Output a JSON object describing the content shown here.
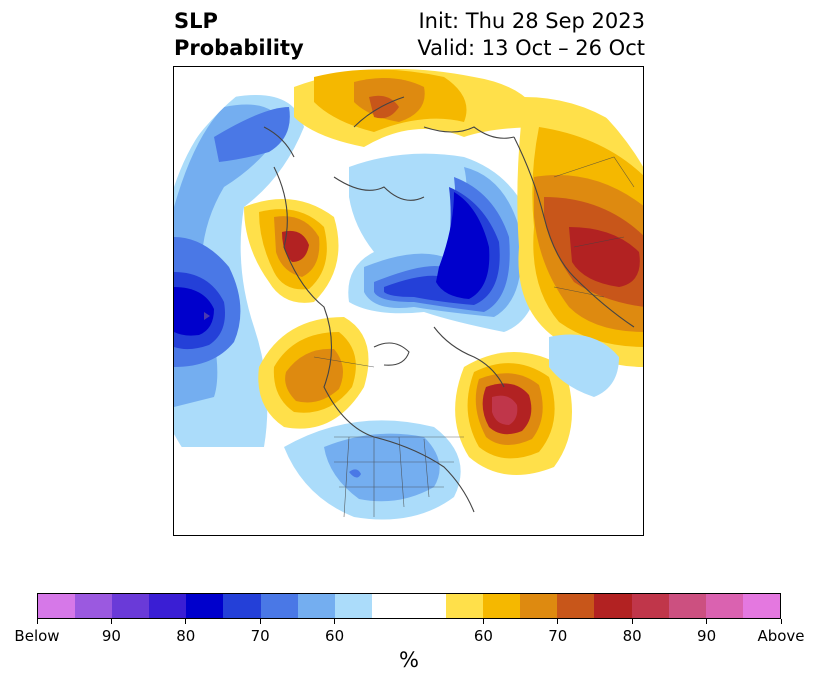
{
  "title": {
    "left_line1": "SLP",
    "left_line2": "Probability",
    "right_line1": "Init: Thu 28 Sep 2023",
    "right_line2": "Valid: 13 Oct – 26 Oct"
  },
  "colorbar": {
    "colors": [
      "#d678e8",
      "#9b59e0",
      "#6a3ad8",
      "#3a1ed4",
      "#0000cc",
      "#2440d8",
      "#4a78e6",
      "#74aef0",
      "#abdcfa",
      "#ffffff",
      "#ffffff",
      "#ffe04a",
      "#f5b800",
      "#de8a10",
      "#c8561a",
      "#b22222",
      "#c0364a",
      "#cc5080",
      "#da62b0",
      "#e478e0"
    ],
    "tick_labels": [
      "Below",
      "90",
      "80",
      "70",
      "60",
      "60",
      "70",
      "80",
      "90",
      "Above"
    ],
    "unit": "%"
  },
  "map": {
    "projection": "north-polar-stereographic",
    "field": "sea-level-pressure-probability",
    "colors": {
      "blue_light": "#abdcfa",
      "blue_mid": "#74aef0",
      "blue_strong": "#4a78e6",
      "blue_deep": "#2440d8",
      "blue_core": "#0000cc",
      "yellow": "#ffe04a",
      "gold": "#f5b800",
      "orange": "#de8a10",
      "rust": "#c8561a",
      "red": "#b22222",
      "rose": "#c0364a"
    }
  }
}
